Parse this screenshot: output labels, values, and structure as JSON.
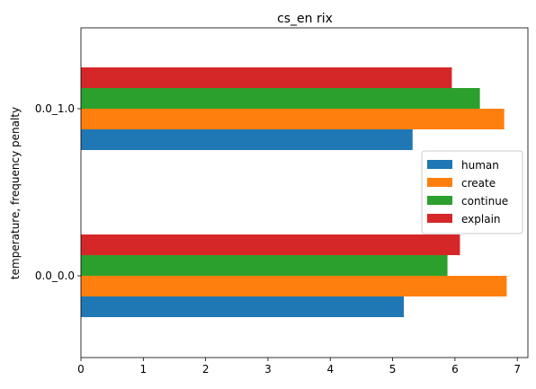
{
  "chart_data": {
    "type": "bar",
    "orientation": "horizontal",
    "title": "cs_en rix",
    "xlabel": "",
    "ylabel": "temperature, frequency penalty",
    "categories": [
      "0.0_0.0",
      "0.0_1.0"
    ],
    "series": [
      {
        "name": "human",
        "color": "#1f77b4",
        "values": [
          5.18,
          5.32
        ]
      },
      {
        "name": "create",
        "color": "#ff7f0e",
        "values": [
          6.83,
          6.79
        ]
      },
      {
        "name": "continue",
        "color": "#2ca02c",
        "values": [
          5.88,
          6.4
        ]
      },
      {
        "name": "explain",
        "color": "#d62728",
        "values": [
          6.08,
          5.95
        ]
      }
    ],
    "xlim": [
      0,
      7.17
    ],
    "xticks": [
      0,
      1,
      2,
      3,
      4,
      5,
      6,
      7
    ],
    "grid": false,
    "legend_position": "center-right"
  }
}
